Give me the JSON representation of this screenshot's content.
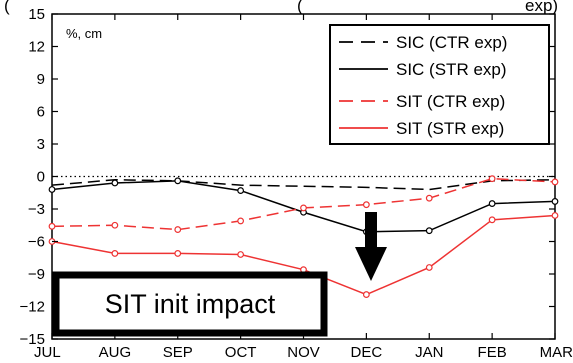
{
  "chart_data": {
    "type": "line",
    "title_partial": "(",
    "title_partial_right": "(",
    "title_partial_end": "exp)",
    "unit_label": "%, cm",
    "x": [
      "JUL",
      "AUG",
      "SEP",
      "OCT",
      "NOV",
      "DEC",
      "JAN",
      "FEB",
      "MAR"
    ],
    "ylim": [
      -15,
      15
    ],
    "yticks": [
      "15",
      "12",
      "9",
      "6",
      "3",
      "0",
      "−3",
      "−6",
      "−9",
      "−12",
      "−15"
    ],
    "ytick_values": [
      15,
      12,
      9,
      6,
      3,
      0,
      -3,
      -6,
      -9,
      -12,
      -15
    ],
    "zero_line": "dotted",
    "series": [
      {
        "name": "SIC (CTR exp)",
        "color": "#000000",
        "dashed": true,
        "markers": false,
        "values": [
          -0.8,
          -0.3,
          -0.4,
          -0.8,
          -0.9,
          -1.0,
          -1.2,
          -0.4,
          -0.3
        ]
      },
      {
        "name": "SIC (STR exp)",
        "color": "#000000",
        "dashed": false,
        "markers": true,
        "values": [
          -1.2,
          -0.6,
          -0.4,
          -1.3,
          -3.3,
          -5.1,
          -5.0,
          -2.5,
          -2.3
        ]
      },
      {
        "name": "SIT (CTR exp)",
        "color": "#ee3333",
        "dashed": true,
        "markers": true,
        "values": [
          -4.6,
          -4.5,
          -4.9,
          -4.1,
          -2.9,
          -2.6,
          -2.0,
          -0.2,
          -0.5
        ]
      },
      {
        "name": "SIT (STR exp)",
        "color": "#ee3333",
        "dashed": false,
        "markers": true,
        "values": [
          -6.0,
          -7.1,
          -7.1,
          -7.2,
          -8.6,
          -10.9,
          -8.4,
          -4.0,
          -3.6
        ]
      }
    ],
    "legend_position": "top-right",
    "annotation_box_text": "SIT init impact",
    "arrow": "pointing down toward DEC"
  }
}
